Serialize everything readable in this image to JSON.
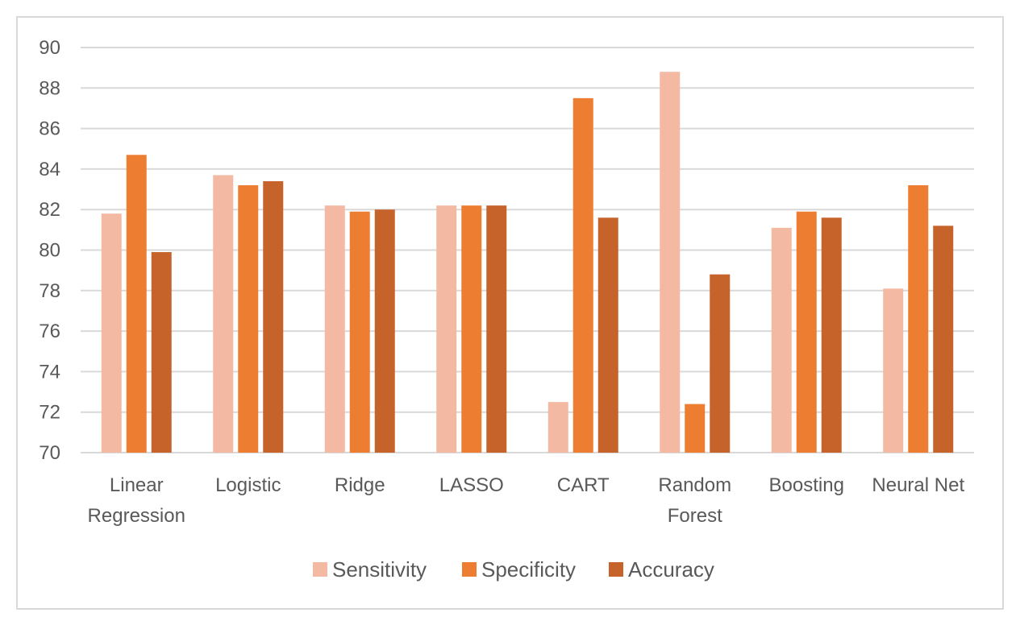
{
  "chart_data": {
    "type": "bar",
    "title": "",
    "xlabel": "",
    "ylabel": "",
    "ylim": [
      70,
      90
    ],
    "yticks": [
      70,
      72,
      74,
      76,
      78,
      80,
      82,
      84,
      86,
      88,
      90
    ],
    "grid": true,
    "legend_position": "bottom",
    "categories": [
      [
        "Linear",
        "Regression"
      ],
      [
        "Logistic"
      ],
      [
        "Ridge"
      ],
      [
        "LASSO"
      ],
      [
        "CART"
      ],
      [
        "Random",
        "Forest"
      ],
      [
        "Boosting"
      ],
      [
        "Neural Net"
      ]
    ],
    "series": [
      {
        "name": "Sensitivity",
        "color": "#f4b9a2",
        "values": [
          81.8,
          83.7,
          82.2,
          82.2,
          72.5,
          88.8,
          81.1,
          78.1
        ]
      },
      {
        "name": "Specificity",
        "color": "#ed7d31",
        "values": [
          84.7,
          83.2,
          81.9,
          82.2,
          87.5,
          72.4,
          81.9,
          83.2
        ]
      },
      {
        "name": "Accuracy",
        "color": "#c5632a",
        "values": [
          79.9,
          83.4,
          82.0,
          82.2,
          81.6,
          78.8,
          81.6,
          81.2
        ]
      }
    ]
  }
}
